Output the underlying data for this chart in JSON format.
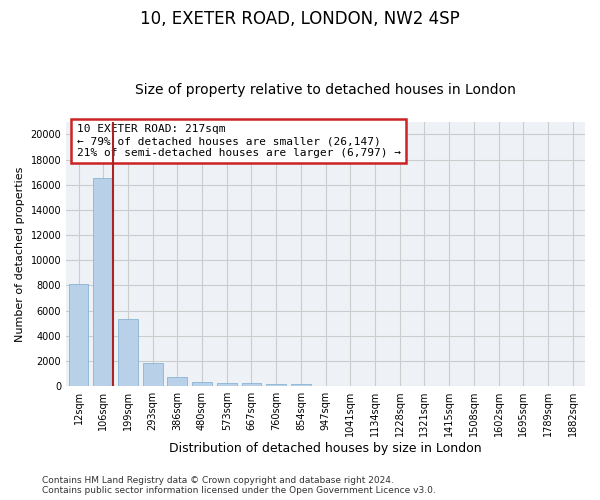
{
  "title": "10, EXETER ROAD, LONDON, NW2 4SP",
  "subtitle": "Size of property relative to detached houses in London",
  "xlabel": "Distribution of detached houses by size in London",
  "ylabel": "Number of detached properties",
  "categories": [
    "12sqm",
    "106sqm",
    "199sqm",
    "293sqm",
    "386sqm",
    "480sqm",
    "573sqm",
    "667sqm",
    "760sqm",
    "854sqm",
    "947sqm",
    "1041sqm",
    "1134sqm",
    "1228sqm",
    "1321sqm",
    "1415sqm",
    "1508sqm",
    "1602sqm",
    "1695sqm",
    "1789sqm",
    "1882sqm"
  ],
  "values": [
    8100,
    16500,
    5300,
    1850,
    700,
    350,
    280,
    220,
    170,
    130,
    0,
    0,
    0,
    0,
    0,
    0,
    0,
    0,
    0,
    0,
    0
  ],
  "bar_color": "#b8d0e8",
  "bar_edge_color": "#7aabcf",
  "vline_color": "#aa2222",
  "annotation_text": "10 EXETER ROAD: 217sqm\n← 79% of detached houses are smaller (26,147)\n21% of semi-detached houses are larger (6,797) →",
  "annotation_box_color": "#cc2222",
  "ylim": [
    0,
    21000
  ],
  "yticks": [
    0,
    2000,
    4000,
    6000,
    8000,
    10000,
    12000,
    14000,
    16000,
    18000,
    20000
  ],
  "grid_color": "#cccccc",
  "bg_color": "#eef2f7",
  "footer": "Contains HM Land Registry data © Crown copyright and database right 2024.\nContains public sector information licensed under the Open Government Licence v3.0.",
  "title_fontsize": 12,
  "subtitle_fontsize": 10,
  "xlabel_fontsize": 9,
  "ylabel_fontsize": 8,
  "tick_fontsize": 7,
  "annotation_fontsize": 8,
  "footer_fontsize": 6.5
}
